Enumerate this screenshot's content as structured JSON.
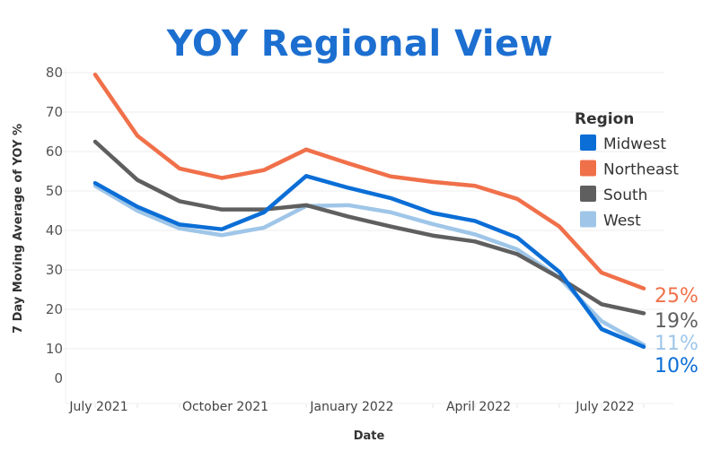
{
  "chart_data": {
    "type": "line",
    "title": "YOY Regional View",
    "xlabel": "Date",
    "ylabel": "7 Day Moving Average of YOY %",
    "ylim": [
      0,
      80
    ],
    "yticks": [
      0,
      10,
      20,
      30,
      40,
      50,
      60,
      70,
      80
    ],
    "grid": true,
    "x": [
      "Jul 2021",
      "Aug 2021",
      "Sep 2021",
      "Oct 2021",
      "Nov 2021",
      "Dec 2021",
      "Jan 2022",
      "Feb 2022",
      "Mar 2022",
      "Apr 2022",
      "May 2022",
      "Jun 2022",
      "Jul 2022",
      "Aug 2022"
    ],
    "xtick_labels": [
      {
        "label": "July 2021",
        "index": 0
      },
      {
        "label": "October 2021",
        "index": 3
      },
      {
        "label": "January 2022",
        "index": 6
      },
      {
        "label": "April 2022",
        "index": 9
      },
      {
        "label": "July 2022",
        "index": 12
      }
    ],
    "legend": {
      "title": "Region",
      "position": "right"
    },
    "series": [
      {
        "name": "Midwest",
        "color": "#0b6ed6",
        "end_label": "10%",
        "values": [
          52,
          46,
          41.5,
          40.3,
          44.6,
          53.8,
          50.8,
          48.2,
          44.4,
          42.4,
          38.2,
          29.5,
          15,
          10.5
        ]
      },
      {
        "name": "Northeast",
        "color": "#f0704a",
        "end_label": "25%",
        "values": [
          79.5,
          64,
          55.7,
          53.3,
          55.3,
          60.5,
          57,
          53.7,
          52.3,
          51.3,
          48,
          41,
          29.3,
          25.3
        ]
      },
      {
        "name": "South",
        "color": "#5f5f5f",
        "end_label": "19%",
        "values": [
          62.5,
          52.8,
          47.4,
          45.3,
          45.3,
          46.4,
          43.5,
          41,
          38.7,
          37.2,
          34,
          28,
          21.3,
          19
        ]
      },
      {
        "name": "West",
        "color": "#9fc6e8",
        "end_label": "11%",
        "values": [
          51.3,
          45,
          40.5,
          38.8,
          40.7,
          46.2,
          46.4,
          44.6,
          41.6,
          39,
          35.2,
          28,
          17,
          11
        ]
      }
    ]
  }
}
